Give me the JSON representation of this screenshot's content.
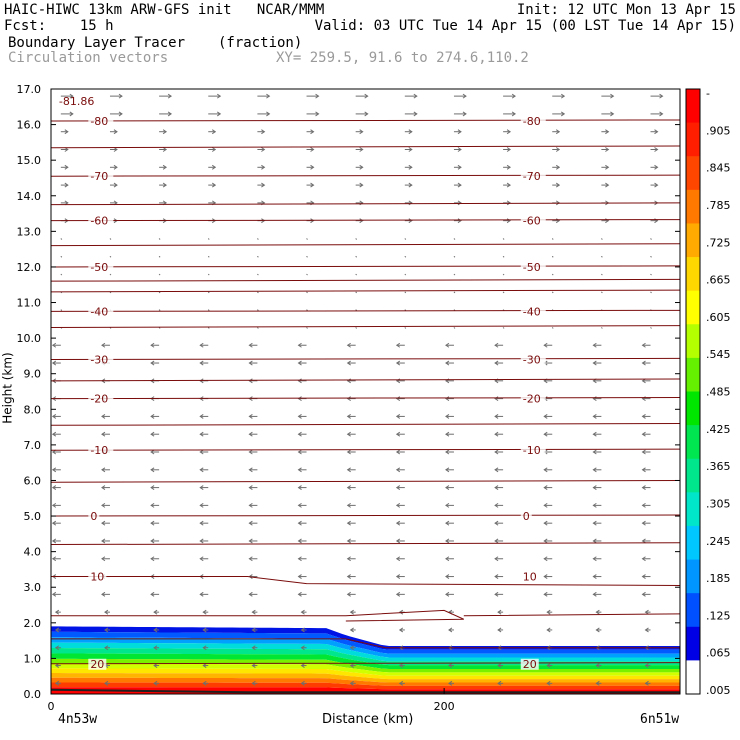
{
  "header": {
    "left_line1": "HAIC-HIWC 13km ARW-GFS init   NCAR/MMM",
    "left_line2": "Fcst:    15 h",
    "right_line1": "Init: 12 UTC Mon 13 Apr 15",
    "right_line2": "Valid: 03 UTC Tue 14 Apr 15 (00 LST Tue 14 Apr 15)",
    "field_name": "Boundary Layer Tracer",
    "field_units": "(fraction)",
    "vector_label": "Circulation vectors",
    "xy_label": "XY= 259.5, 91.6 to 274.6,110.2"
  },
  "colors": {
    "contour": "#7a0c0c",
    "vector": "#6e6e6e",
    "ramp": [
      "#ffffff",
      "#0000e6",
      "#0050ff",
      "#0096ff",
      "#00c8ff",
      "#00e6c8",
      "#00e68c",
      "#00e650",
      "#00e600",
      "#64f000",
      "#b4ff00",
      "#ffff00",
      "#ffd700",
      "#ffaa00",
      "#ff7800",
      "#ff4600",
      "#ff1e00",
      "#ff0000"
    ]
  },
  "chart_data": {
    "type": "cross-section",
    "title": "Boundary Layer Tracer",
    "units": "(fraction)",
    "xlabel": "Distance (km)",
    "ylabel": "Height (km)",
    "x_endpoints": [
      "4n53w",
      "6n51w"
    ],
    "x_ticks": [
      0,
      200
    ],
    "x_range": [
      0,
      320
    ],
    "ylim": [
      0.0,
      17.0
    ],
    "y_ticks": [
      "0.0",
      "1.0",
      "2.0",
      "3.0",
      "4.0",
      "5.0",
      "6.0",
      "7.0",
      "8.0",
      "9.0",
      "10.0",
      "11.0",
      "12.0",
      "13.0",
      "14.0",
      "15.0",
      "16.0",
      "17.0"
    ],
    "colorbar_labels": [
      "-",
      ".905",
      ".845",
      ".785",
      ".725",
      ".665",
      ".605",
      ".545",
      ".485",
      ".425",
      ".365",
      ".305",
      ".245",
      ".185",
      ".125",
      ".065",
      ".005"
    ],
    "tracer_top_height_km": [
      {
        "x": 0,
        "h": 1.9
      },
      {
        "x": 140,
        "h": 1.85
      },
      {
        "x": 150,
        "h": 1.65
      },
      {
        "x": 170,
        "h": 1.35
      },
      {
        "x": 320,
        "h": 1.35
      }
    ],
    "temperature_contours_c": [
      {
        "value": 20,
        "height_km": 0.85,
        "label": "20"
      },
      {
        "value": 10,
        "height_km": 3.3,
        "label": "10"
      },
      {
        "value": 0,
        "height_km": 5.0,
        "label": "0"
      },
      {
        "value": -10,
        "height_km": 6.85,
        "label": "-10"
      },
      {
        "value": -20,
        "height_km": 8.3,
        "label": "-20"
      },
      {
        "value": -30,
        "height_km": 9.4,
        "label": "-30"
      },
      {
        "value": -40,
        "height_km": 10.75,
        "label": "-40"
      },
      {
        "value": -50,
        "height_km": 12.0,
        "label": "-50"
      },
      {
        "value": -60,
        "height_km": 13.3,
        "label": "-60"
      },
      {
        "value": -70,
        "height_km": 14.55,
        "label": "-70"
      },
      {
        "value": -80,
        "height_km": 16.1,
        "label": "-80"
      }
    ],
    "extra_contours_km": [
      1.55,
      2.2,
      4.2,
      5.95,
      7.55,
      8.8,
      10.3,
      11.3,
      11.6,
      12.6,
      13.75,
      15.35
    ],
    "min_label": "-81.86"
  }
}
